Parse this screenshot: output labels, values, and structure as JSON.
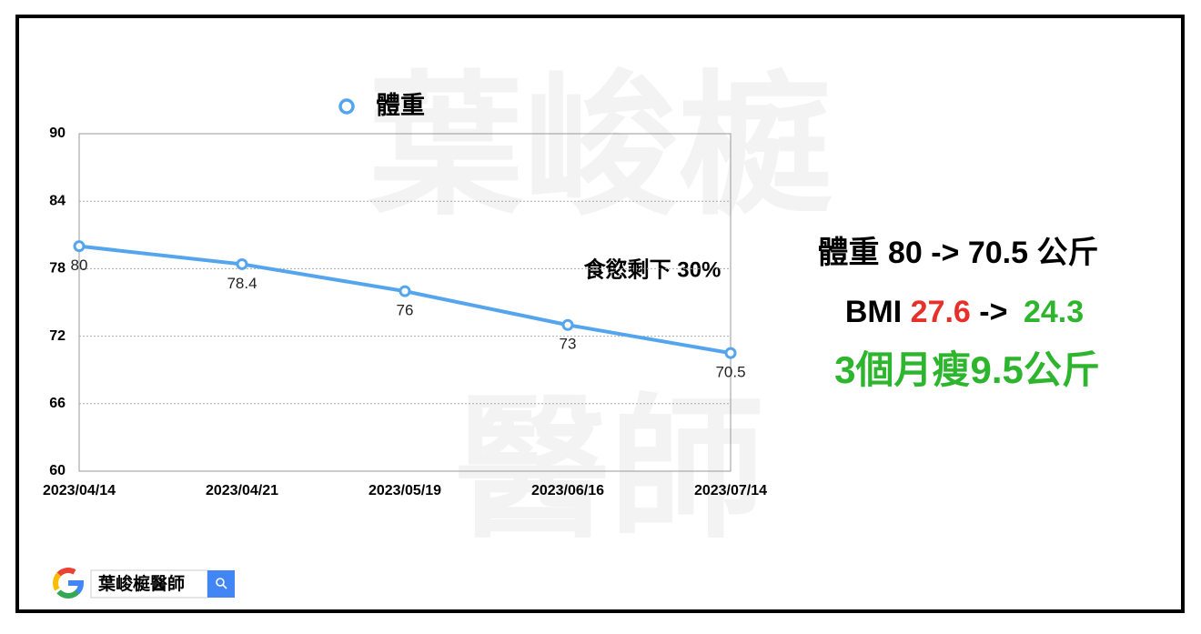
{
  "chart_data": {
    "type": "line",
    "legend": "體重",
    "categories": [
      "2023/04/14",
      "2023/04/21",
      "2023/05/19",
      "2023/06/16",
      "2023/07/14"
    ],
    "series": [
      {
        "name": "體重",
        "color": "#55a5ee",
        "values": [
          80,
          78.4,
          76,
          73,
          70.5
        ]
      }
    ],
    "ylim": [
      60,
      90
    ],
    "yticks": [
      60,
      66,
      72,
      78,
      84,
      90
    ],
    "grid": true,
    "annotation": "食慾剩下 30%"
  },
  "summary": {
    "line1": "體重 80 -> 70.5 公斤",
    "line2": {
      "label": "BMI",
      "before": "27.6",
      "arrow": "->",
      "after": "24.3"
    },
    "line3": "3個月瘦9.5公斤"
  },
  "watermark": [
    "葉峻榳",
    "醫師"
  ],
  "search": "葉峻榳醫師"
}
